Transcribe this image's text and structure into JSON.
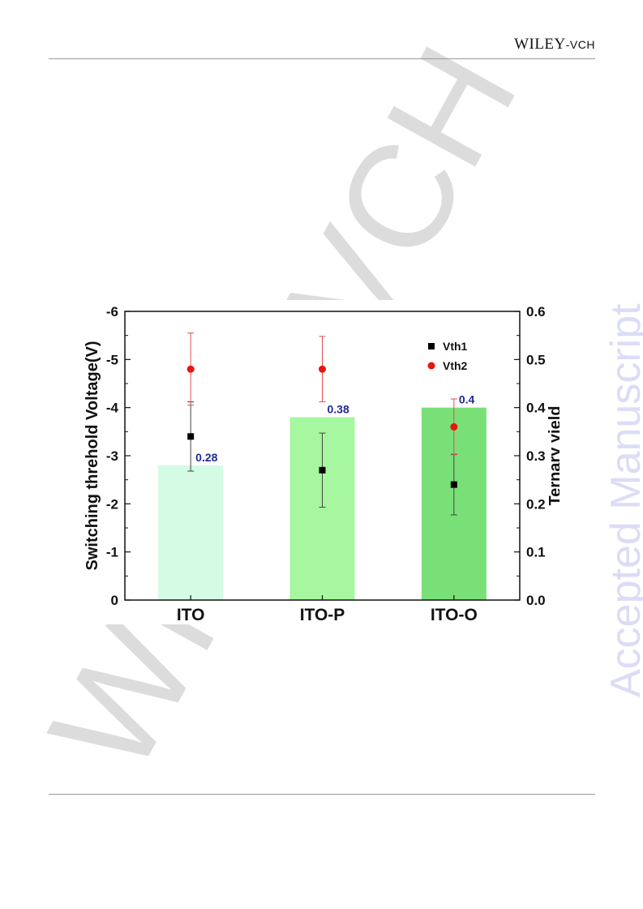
{
  "header": {
    "brand_main": "WILEY",
    "brand_sub": "-VCH"
  },
  "watermarks": {
    "diagonal": "WILEY-VCH",
    "sidebar": "Accepted Manuscript"
  },
  "chart_data": {
    "type": "bar",
    "categories": [
      "ITO",
      "ITO-P",
      "ITO-O"
    ],
    "bar_series": {
      "name": "Ternary yield",
      "axis": "right",
      "values": [
        0.28,
        0.38,
        0.4
      ],
      "labels": [
        "0.28",
        "0.38",
        "0.4"
      ],
      "colors": [
        "#d4fbe4",
        "#a6f7a0",
        "#79e078"
      ]
    },
    "point_series": [
      {
        "name": "Vth1",
        "axis": "left",
        "marker": "square",
        "color": "#000000",
        "values": [
          -3.4,
          -2.7,
          -2.4
        ],
        "error": [
          0.72,
          0.77,
          0.63
        ]
      },
      {
        "name": "Vth2",
        "axis": "left",
        "marker": "circle",
        "color": "#e8170e",
        "values": [
          -4.8,
          -4.8,
          -3.6
        ],
        "error": [
          0.75,
          0.68,
          0.58
        ]
      }
    ],
    "y_left": {
      "label": "Switching threhold Voltage(V)",
      "range": [
        0,
        -6
      ],
      "ticks": [
        "0",
        "-1",
        "-2",
        "-3",
        "-4",
        "-5",
        "-6"
      ]
    },
    "y_right": {
      "label": "Ternary yield",
      "range": [
        0,
        0.6
      ],
      "ticks": [
        "0.0",
        "0.1",
        "0.2",
        "0.3",
        "0.4",
        "0.5",
        "0.6"
      ]
    },
    "legend": {
      "position": "top-right",
      "entries": [
        "Vth1",
        "Vth2"
      ]
    },
    "grid": false
  }
}
